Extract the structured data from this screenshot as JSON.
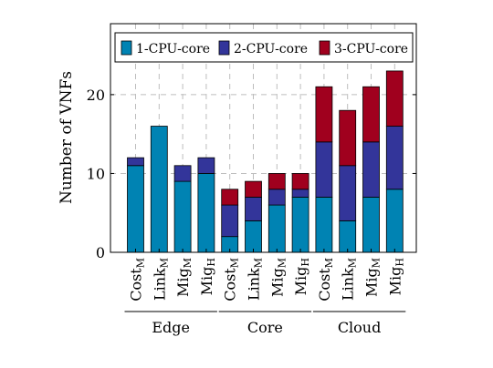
{
  "chart_data": {
    "type": "bar",
    "stacked": true,
    "title": "",
    "xlabel": "",
    "ylabel": "Number of VNFs",
    "ylim": [
      0,
      29
    ],
    "yticks": [
      0,
      10,
      20
    ],
    "grid": true,
    "legend_position": "top",
    "categories": [
      {
        "base": "Cost",
        "sub": "M",
        "group": "Edge"
      },
      {
        "base": "Link",
        "sub": "M",
        "group": "Edge"
      },
      {
        "base": "Mig",
        "sub": "M",
        "group": "Edge"
      },
      {
        "base": "Mig",
        "sub": "H",
        "group": "Edge"
      },
      {
        "base": "Cost",
        "sub": "M",
        "group": "Core"
      },
      {
        "base": "Link",
        "sub": "M",
        "group": "Core"
      },
      {
        "base": "Mig",
        "sub": "M",
        "group": "Core"
      },
      {
        "base": "Mig",
        "sub": "H",
        "group": "Core"
      },
      {
        "base": "Cost",
        "sub": "M",
        "group": "Cloud"
      },
      {
        "base": "Link",
        "sub": "M",
        "group": "Cloud"
      },
      {
        "base": "Mig",
        "sub": "M",
        "group": "Cloud"
      },
      {
        "base": "Mig",
        "sub": "H",
        "group": "Cloud"
      }
    ],
    "groups": [
      "Edge",
      "Core",
      "Cloud"
    ],
    "series": [
      {
        "name": "1-CPU-core",
        "color": "#0083b3",
        "values": [
          11,
          16,
          9,
          10,
          2,
          4,
          6,
          7,
          7,
          4,
          7,
          8
        ]
      },
      {
        "name": "2-CPU-core",
        "color": "#33359a",
        "values": [
          1,
          0,
          2,
          2,
          4,
          3,
          2,
          1,
          7,
          7,
          7,
          8
        ]
      },
      {
        "name": "3-CPU-core",
        "color": "#a0001e",
        "values": [
          0,
          0,
          0,
          0,
          2,
          2,
          2,
          2,
          7,
          7,
          7,
          7
        ]
      }
    ]
  }
}
